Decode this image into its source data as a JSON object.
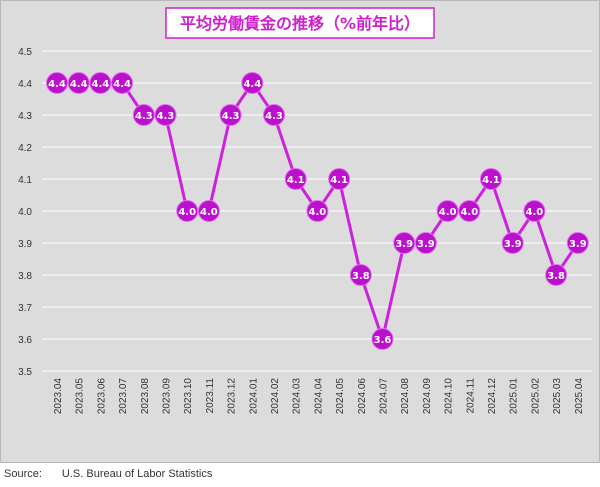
{
  "chart_data": {
    "type": "line",
    "title": "平均労働賃金の推移（%前年比）",
    "xlabel": "",
    "ylabel": "",
    "ylim": [
      3.5,
      4.5
    ],
    "yticks": [
      "3.5",
      "3.6",
      "3.7",
      "3.8",
      "3.9",
      "4.0",
      "4.1",
      "4.2",
      "4.3",
      "4.4",
      "4.5"
    ],
    "grid": true,
    "legend": "none",
    "categories": [
      "2023.04",
      "2023.05",
      "2023.06",
      "2023.07",
      "2023.08",
      "2023.09",
      "2023.10",
      "2023.11",
      "2023.12",
      "2024.01",
      "2024.02",
      "2024.03",
      "2024.04",
      "2024.05",
      "2024.06",
      "2024.07",
      "2024.08",
      "2024.09",
      "2024.10",
      "2024.11",
      "2024.12",
      "2025.01",
      "2025.02",
      "2025.03",
      "2025.04"
    ],
    "series": [
      {
        "values": [
          4.4,
          4.4,
          4.4,
          4.4,
          4.3,
          4.3,
          4.0,
          4.0,
          4.3,
          4.4,
          4.3,
          4.1,
          4.0,
          4.1,
          3.8,
          3.6,
          3.9,
          3.9,
          4.0,
          4.0,
          4.1,
          3.9,
          4.0,
          3.8,
          3.9
        ]
      }
    ],
    "colors": {
      "line": "#cc22dd",
      "marker": "#bb11cc",
      "label_text": "#ffffff",
      "title_text": "#cc22cc",
      "title_border": "#cc22cc",
      "background": "#dcdcdc",
      "grid": "#ffffff"
    }
  },
  "source": {
    "label": "Source:",
    "text": "U.S. Bureau of Labor Statistics"
  }
}
